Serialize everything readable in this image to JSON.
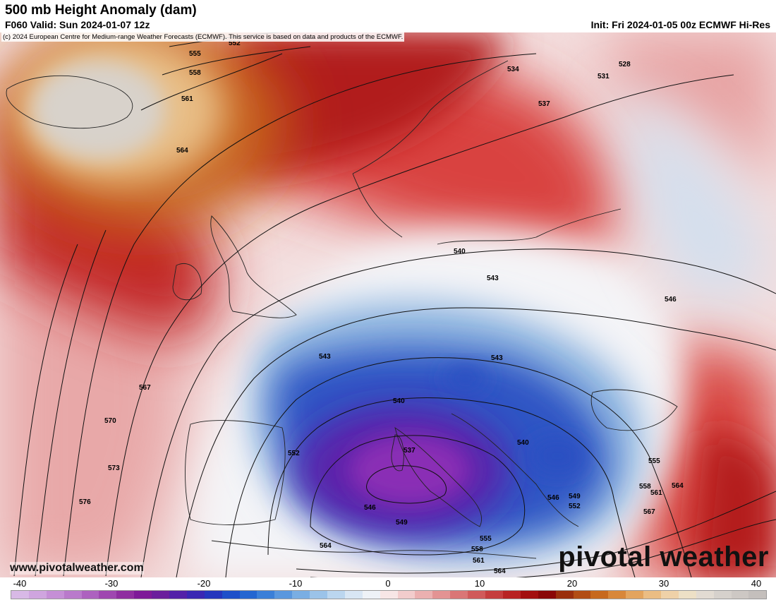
{
  "header": {
    "title": "500 mb Height Anomaly (dam)",
    "valid": "F060 Valid: Sun 2024-01-07 12z",
    "init": "Init: Fri 2024-01-05 00z ECMWF Hi-Res"
  },
  "copyright": "(c) 2024 European Centre for Medium-range Weather Forecasts (ECMWF). This service is based on data and products of the ECMWF.",
  "website": "www.pivotalweather.com",
  "brand": "pivotal weather",
  "colorbar": {
    "ticks": [
      "-40",
      "-30",
      "-20",
      "-10",
      "0",
      "10",
      "20",
      "30",
      "40"
    ],
    "min": -40,
    "max": 40,
    "colors": [
      "#d8b9e6",
      "#cfa5df",
      "#c58fd6",
      "#b97acb",
      "#ad62bf",
      "#9f47b0",
      "#8f2ea0",
      "#7e1a98",
      "#6b1e9c",
      "#5321a8",
      "#3a27b3",
      "#2436bd",
      "#1d4fc9",
      "#2466d1",
      "#3b7fd8",
      "#5a97de",
      "#7aaee3",
      "#9bc3e9",
      "#bbd6ef",
      "#d8e6f4",
      "#eef2f7",
      "#f7e6e6",
      "#f2cccc",
      "#ebb0b0",
      "#e39393",
      "#da7676",
      "#d05a5a",
      "#c53d3d",
      "#b82323",
      "#a30f0f",
      "#8a0707",
      "#9a2f0d",
      "#b24d14",
      "#c7691e",
      "#d8873a",
      "#e3a45e",
      "#ebbd83",
      "#efd1a8",
      "#ede0c6",
      "#e2dbd2",
      "#d6d1cc",
      "#cdc8c4",
      "#c4bfbc"
    ]
  },
  "contours": {
    "labels": [
      "552",
      "555",
      "558",
      "561",
      "564",
      "534",
      "537",
      "531",
      "528",
      "540",
      "543",
      "546",
      "567",
      "570",
      "573",
      "576",
      "552",
      "540",
      "537",
      "543",
      "540",
      "546",
      "549",
      "543",
      "555",
      "558",
      "561",
      "564",
      "567",
      "546",
      "549",
      "552",
      "555",
      "558",
      "561",
      "564",
      "564"
    ]
  }
}
